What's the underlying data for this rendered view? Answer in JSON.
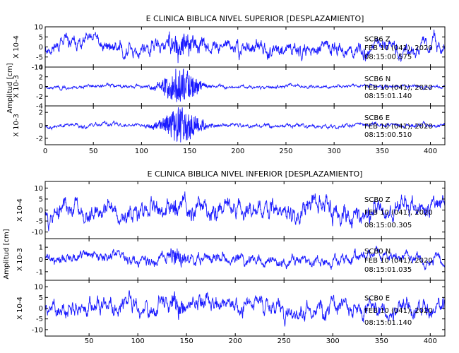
{
  "chart_data": [
    {
      "type": "line",
      "title": "E CLINICA BIBLICA NIVEL SUPERIOR [DESPLAZAMIENTO]",
      "ylabel": "Amplitud [cm]",
      "x_ticks": [
        0,
        50,
        100,
        150,
        200,
        250,
        300,
        350,
        400
      ],
      "xlim": [
        0,
        415
      ],
      "series": [
        {
          "scale_label": "X 10-4",
          "ylim": [
            -10,
            10
          ],
          "y_ticks": [
            10,
            5,
            0,
            -5,
            -10
          ],
          "station": "SCB6 Z",
          "date": "FEB 10 (041), 2020",
          "time": "08:15:00.575",
          "noise": 4.0,
          "burst": 5.0,
          "burst_center": 140,
          "burst_width": 15,
          "seed": 11
        },
        {
          "scale_label": "X 10-3",
          "ylim": [
            -4,
            4
          ],
          "y_ticks": [
            4,
            2,
            0,
            -2,
            -4
          ],
          "station": "SCB6 N",
          "date": "FEB 10 (041), 2020",
          "time": "08:15:01.140",
          "noise": 0.4,
          "burst": 3.6,
          "burst_center": 140,
          "burst_width": 18,
          "seed": 23
        },
        {
          "scale_label": "X 10-3",
          "ylim": [
            -3,
            3
          ],
          "y_ticks": [
            2,
            0,
            -2
          ],
          "station": "SCB6 E",
          "date": "FEB 10 (041), 2020",
          "time": "08:15:00.510",
          "noise": 0.35,
          "burst": 2.8,
          "burst_center": 140,
          "burst_width": 20,
          "seed": 37
        }
      ]
    },
    {
      "type": "line",
      "title": "E CLINICA BIBLICA NIVEL INFERIOR [DESPLAZAMIENTO]",
      "ylabel": "Amplitud [cm]",
      "x_ticks": [
        50,
        100,
        150,
        200,
        250,
        300,
        350,
        400
      ],
      "xlim": [
        5,
        415
      ],
      "series": [
        {
          "scale_label": "X 10-4",
          "ylim": [
            -13,
            13
          ],
          "y_ticks": [
            10,
            5,
            0,
            -5,
            -10
          ],
          "station": "SCB0 Z",
          "date": "FEB 10 (041), 2020",
          "time": "08:15:00.305",
          "noise": 5.0,
          "burst": 2.5,
          "burst_center": 140,
          "burst_width": 8,
          "seed": 53
        },
        {
          "scale_label": "X 10-3",
          "ylim": [
            -1.7,
            1.7
          ],
          "y_ticks": [
            1,
            0,
            -1
          ],
          "station": "SCB0 N",
          "date": "FEB 10 (041), 2020",
          "time": "08:15:01.035",
          "noise": 0.5,
          "burst": 0.6,
          "burst_center": 140,
          "burst_width": 8,
          "seed": 71
        },
        {
          "scale_label": "X 10-4",
          "ylim": [
            -13,
            13
          ],
          "y_ticks": [
            10,
            5,
            0,
            -5,
            -10
          ],
          "station": "SCB0 E",
          "date": "FEB 10 (041), 2020",
          "time": "08:15:01.140",
          "noise": 4.5,
          "burst": 3.5,
          "burst_center": 140,
          "burst_width": 8,
          "seed": 89
        }
      ]
    }
  ]
}
